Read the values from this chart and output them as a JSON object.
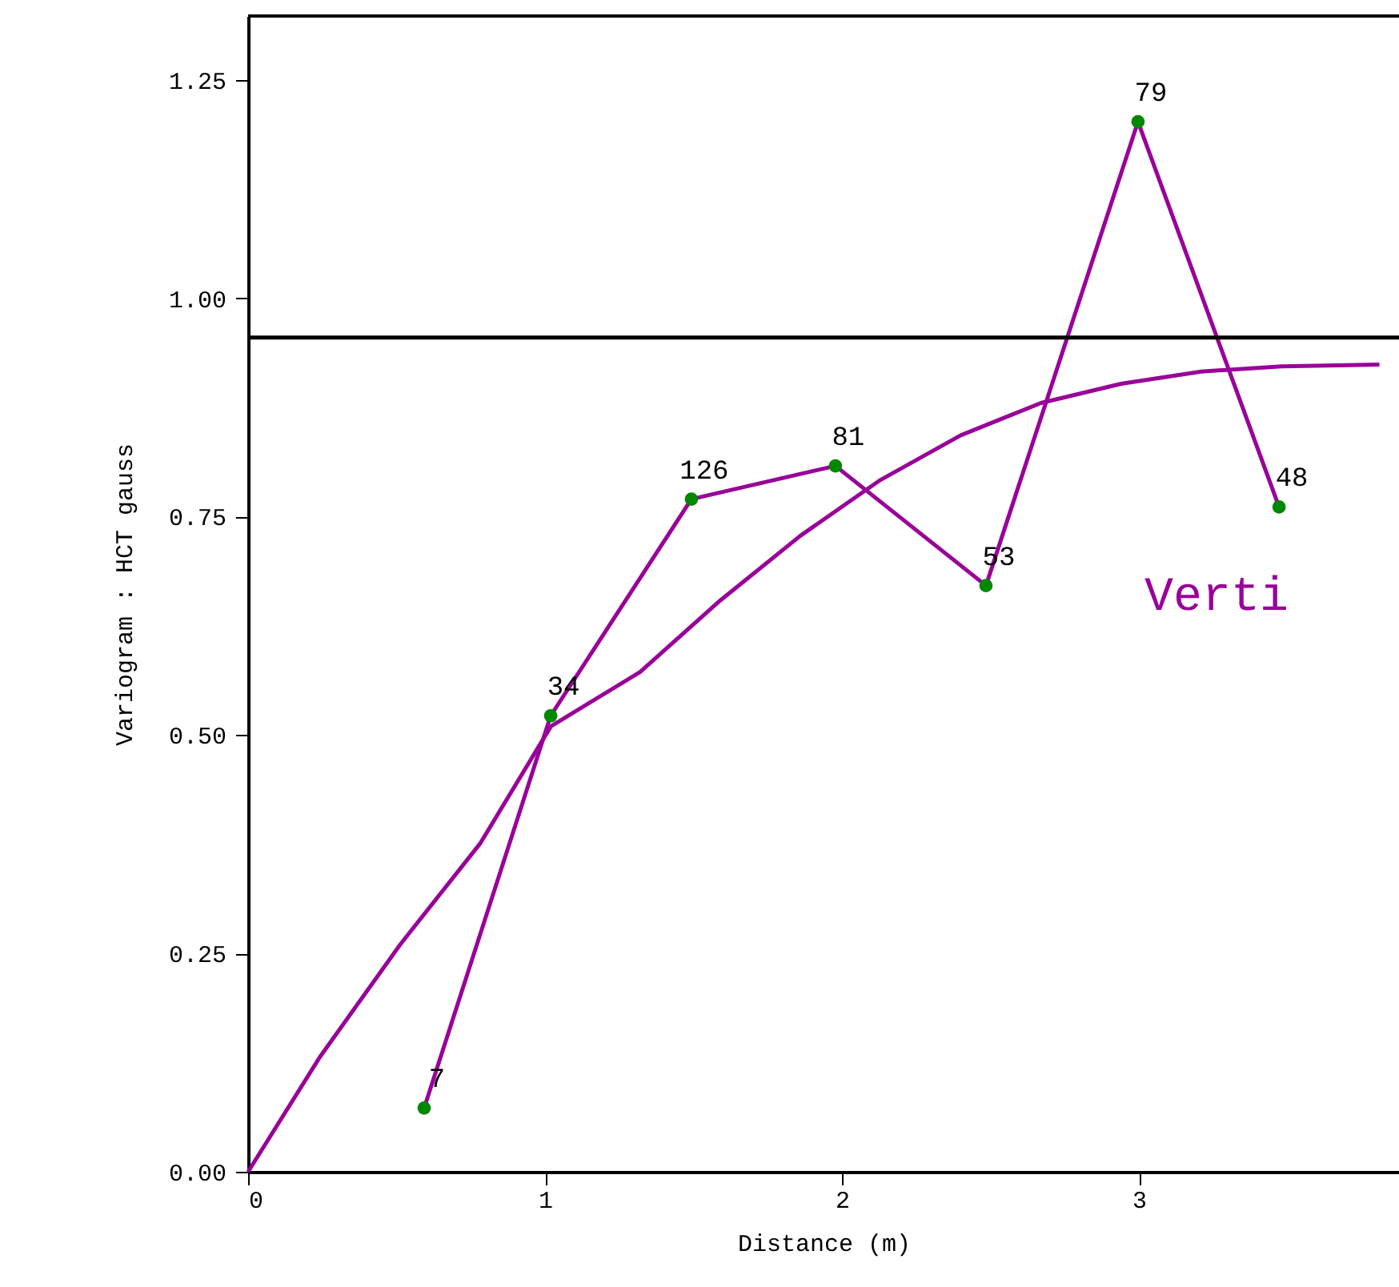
{
  "chart_data": {
    "type": "line",
    "xlabel": "Distance (m)",
    "ylabel": "Variogram : HCT gauss",
    "xlim": [
      0,
      3.876
    ],
    "xticks": [
      {
        "value": 0,
        "label": "0"
      },
      {
        "value": 1,
        "label": "1"
      },
      {
        "value": 2,
        "label": "2"
      },
      {
        "value": 3,
        "label": "3"
      }
    ],
    "ylim": [
      0,
      1.323
    ],
    "yticks": [
      {
        "value": 0,
        "label": "0.00"
      },
      {
        "value": 0.25,
        "label": "0.25"
      },
      {
        "value": 0.5,
        "label": "0.50"
      },
      {
        "value": 0.75,
        "label": "0.75"
      },
      {
        "value": 1,
        "label": "1.00"
      },
      {
        "value": 1.25,
        "label": "1.25"
      }
    ],
    "grid": false,
    "legend": false,
    "line_style": "solid",
    "series": [
      {
        "name": "Verti",
        "marker": "circle",
        "color": "#990099",
        "colors": [
          "#008800",
          "#008800",
          "#008800",
          "#008800",
          "#008800",
          "#008800",
          "#008800"
        ],
        "x": [
          0.593,
          1.019,
          1.493,
          1.978,
          2.485,
          2.997,
          3.472
        ],
        "values": [
          0.073,
          0.522,
          0.77,
          0.808,
          0.671,
          1.202,
          0.761
        ]
      },
      {
        "marker": "none",
        "color": "#990099",
        "x": [
          0,
          0.243,
          0.512,
          0.782,
          1.02,
          1.32,
          1.59,
          1.86,
          2.13,
          2.4,
          2.67,
          2.94,
          3.21,
          3.48,
          3.81
        ],
        "values": [
          0,
          0.132,
          0.26,
          0.376,
          0.51,
          0.572,
          0.654,
          0.728,
          0.792,
          0.843,
          0.88,
          0.902,
          0.916,
          0.922,
          0.924
        ]
      }
    ],
    "ref_lines": [
      {
        "axis": "y",
        "value": 0.955,
        "color": "#000000"
      }
    ],
    "annotations": [
      {
        "text": "7",
        "x": 0.593,
        "y": 0.073
      },
      {
        "text": "34",
        "x": 1.019,
        "y": 0.522
      },
      {
        "text": "126",
        "x": 1.493,
        "y": 0.77
      },
      {
        "text": "81",
        "x": 1.978,
        "y": 0.808
      },
      {
        "text": "53",
        "x": 2.485,
        "y": 0.671
      },
      {
        "text": "79",
        "x": 2.997,
        "y": 1.202
      },
      {
        "text": "48",
        "x": 3.472,
        "y": 0.761
      }
    ]
  }
}
